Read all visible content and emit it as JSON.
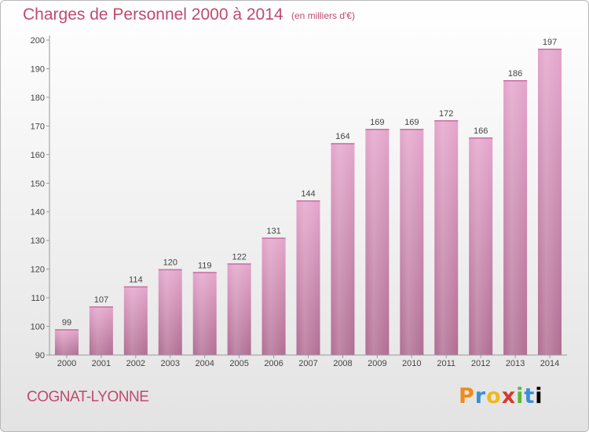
{
  "title": "Charges de Personnel 2000 à 2014",
  "subtitle": "(en milliers d'€)",
  "commune": "COGNAT-LYONNE",
  "logo_text": "Proxiti",
  "colors": {
    "bar_top": "#e4a5cb",
    "bar_bottom": "#b06d92",
    "text": "#c04a6e"
  },
  "chart_data": {
    "type": "bar",
    "title": "Charges de Personnel 2000 à 2014",
    "subtitle": "(en milliers d'€)",
    "categories": [
      "2000",
      "2001",
      "2002",
      "2003",
      "2004",
      "2005",
      "2006",
      "2007",
      "2008",
      "2009",
      "2010",
      "2011",
      "2012",
      "2013",
      "2014"
    ],
    "values": [
      99,
      107,
      114,
      120,
      119,
      122,
      131,
      144,
      164,
      169,
      169,
      172,
      166,
      186,
      197
    ],
    "ylim": [
      90,
      200
    ],
    "yticks": [
      90,
      100,
      110,
      120,
      130,
      140,
      150,
      160,
      170,
      180,
      190,
      200
    ],
    "grid": false
  }
}
